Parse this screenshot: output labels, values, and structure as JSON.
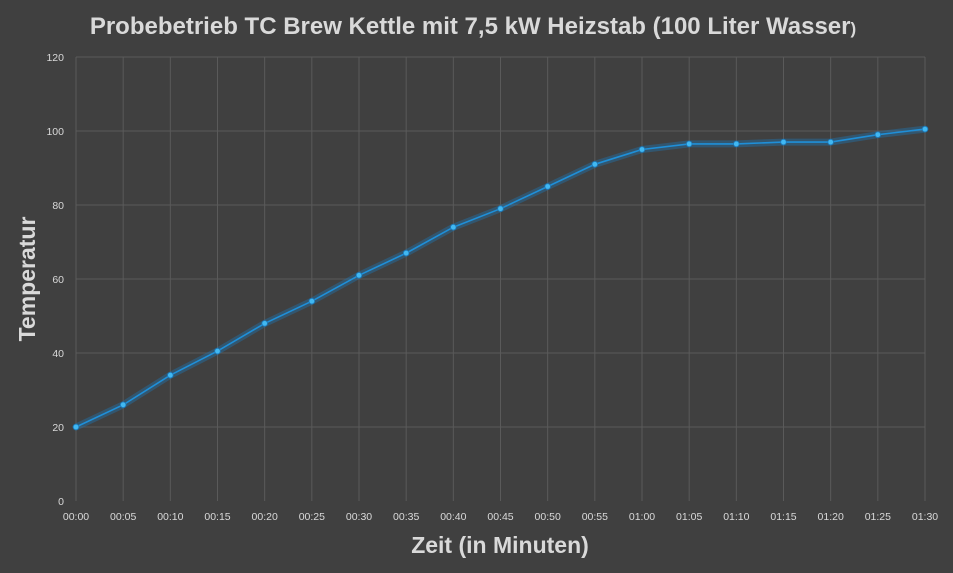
{
  "chart_data": {
    "type": "line",
    "title": "Probebetrieb TC Brew Kettle mit 7,5 kW Heizstab (100 Liter Wasser",
    "title_tail": ")",
    "xlabel": "Zeit (in Minuten)",
    "ylabel": "Temperatur",
    "categories": [
      "00:00",
      "00:05",
      "00:10",
      "00:15",
      "00:20",
      "00:25",
      "00:30",
      "00:35",
      "00:40",
      "00:45",
      "00:50",
      "00:55",
      "01:00",
      "01:05",
      "01:10",
      "01:15",
      "01:20",
      "01:25",
      "01:30"
    ],
    "series": [
      {
        "values": [
          20,
          26,
          34,
          40.5,
          48,
          54,
          61,
          67,
          74,
          79,
          85,
          91,
          95,
          96.5,
          96.5,
          97,
          97,
          99,
          100.5
        ],
        "color": "#1f8fd8"
      }
    ],
    "ylim": [
      0,
      120
    ],
    "yticks": [
      0,
      20,
      40,
      60,
      80,
      100,
      120
    ],
    "grid": true,
    "legend": "none",
    "colors": {
      "background": "#404040",
      "grid": "#5a5a5a",
      "text": "#d9d9d9",
      "line": "#1f8fd8",
      "marker": "#41b8f2"
    }
  }
}
